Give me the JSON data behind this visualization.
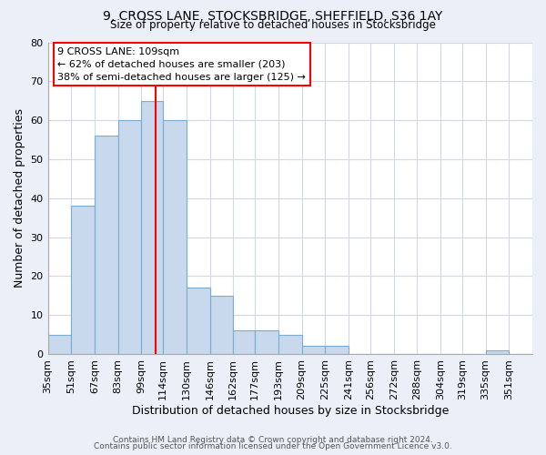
{
  "title1": "9, CROSS LANE, STOCKSBRIDGE, SHEFFIELD, S36 1AY",
  "title2": "Size of property relative to detached houses in Stocksbridge",
  "xlabel": "Distribution of detached houses by size in Stocksbridge",
  "ylabel": "Number of detached properties",
  "bin_labels": [
    "35sqm",
    "51sqm",
    "67sqm",
    "83sqm",
    "99sqm",
    "114sqm",
    "130sqm",
    "146sqm",
    "162sqm",
    "177sqm",
    "193sqm",
    "209sqm",
    "225sqm",
    "241sqm",
    "256sqm",
    "272sqm",
    "288sqm",
    "304sqm",
    "319sqm",
    "335sqm",
    "351sqm"
  ],
  "bin_edges": [
    35,
    51,
    67,
    83,
    99,
    114,
    130,
    146,
    162,
    177,
    193,
    209,
    225,
    241,
    256,
    272,
    288,
    304,
    319,
    335,
    351,
    367
  ],
  "bar_values": [
    5,
    38,
    56,
    60,
    65,
    60,
    17,
    15,
    6,
    6,
    5,
    2,
    2,
    0,
    0,
    0,
    0,
    0,
    0,
    1,
    0
  ],
  "bar_color": "#c8d8ed",
  "bar_edge_color": "#7aadd4",
  "vline_x": 109,
  "vline_color": "red",
  "annotation_text_line1": "9 CROSS LANE: 109sqm",
  "annotation_text_line2": "← 62% of detached houses are smaller (203)",
  "annotation_text_line3": "38% of semi-detached houses are larger (125) →",
  "annotation_box_edge_color": "red",
  "annotation_box_face_color": "white",
  "ylim": [
    0,
    80
  ],
  "yticks": [
    0,
    10,
    20,
    30,
    40,
    50,
    60,
    70,
    80
  ],
  "grid_color": "#d0d8e8",
  "bg_color": "#eaeff8",
  "plot_bg_color": "#ffffff",
  "footer1": "Contains HM Land Registry data © Crown copyright and database right 2024.",
  "footer2": "Contains public sector information licensed under the Open Government Licence v3.0."
}
